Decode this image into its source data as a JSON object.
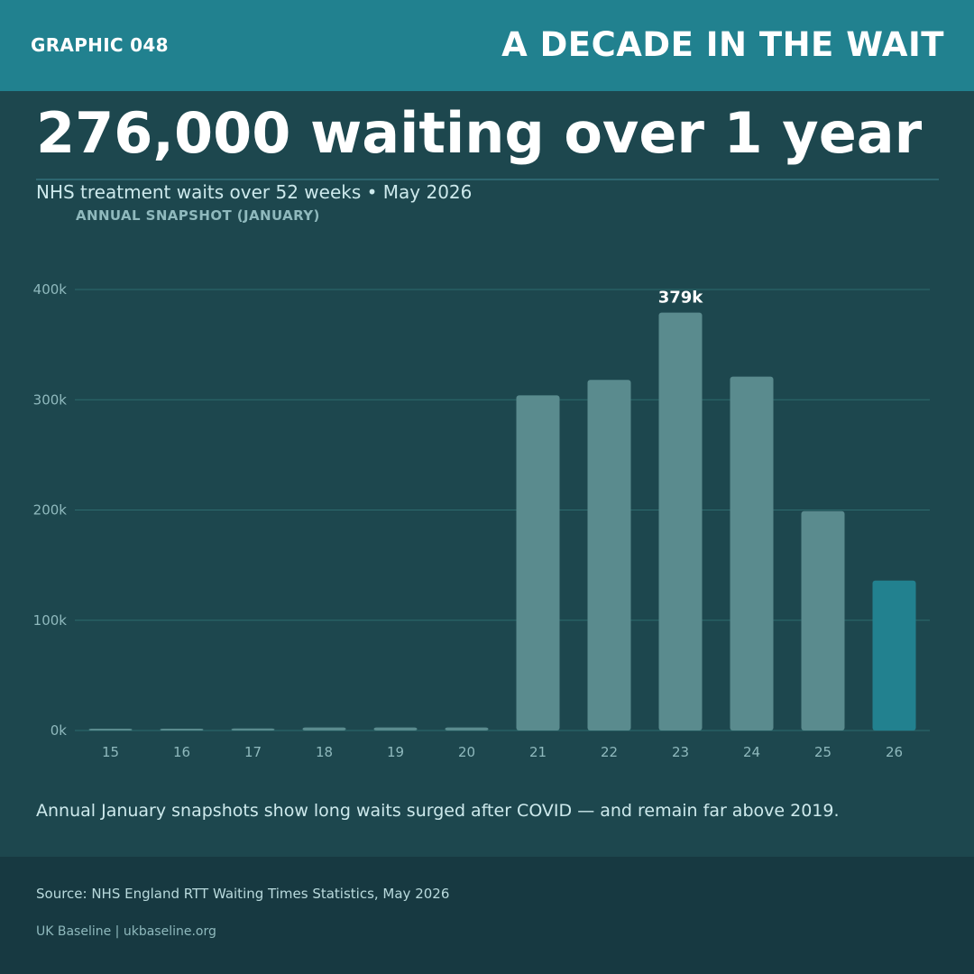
{
  "header": {
    "graphic_id": "GRAPHIC 048",
    "series_title": "A DECADE IN THE WAIT"
  },
  "headline": "276,000 waiting over 1 year",
  "subtitle": "NHS treatment waits over 52 weeks  •  May 2026",
  "chart_label": "ANNUAL SNAPSHOT (JANUARY)",
  "caption": "Annual January snapshots show long waits surged after COVID — and remain far above 2019.",
  "footer": {
    "source": "Source: NHS England RTT Waiting Times Statistics, May 2026",
    "brand": "UK Baseline  |  ukbaseline.org"
  },
  "colors": {
    "background": "#1d474e",
    "header_bar": "#21818f",
    "bar": "#5a8b8e",
    "highlight_bar": "#22818f",
    "grid": "#2c6b6d",
    "footer": "#173941"
  },
  "chart_data": {
    "type": "bar",
    "title": "",
    "xlabel": "",
    "ylabel": "",
    "categories": [
      "15",
      "16",
      "17",
      "18",
      "19",
      "20",
      "21",
      "22",
      "23",
      "24",
      "25",
      "26"
    ],
    "values": [
      1000,
      1500,
      1800,
      2800,
      2800,
      2800,
      304000,
      318000,
      379000,
      321000,
      199000,
      136000
    ],
    "highlight_index": 11,
    "ylim": [
      0,
      400000
    ],
    "yticks": [
      0,
      100000,
      200000,
      300000,
      400000
    ],
    "ytick_labels": [
      "0k",
      "100k",
      "200k",
      "300k",
      "400k"
    ],
    "annotations": [
      {
        "category": "23",
        "text": "379k"
      }
    ],
    "grid": true,
    "legend": "none"
  }
}
